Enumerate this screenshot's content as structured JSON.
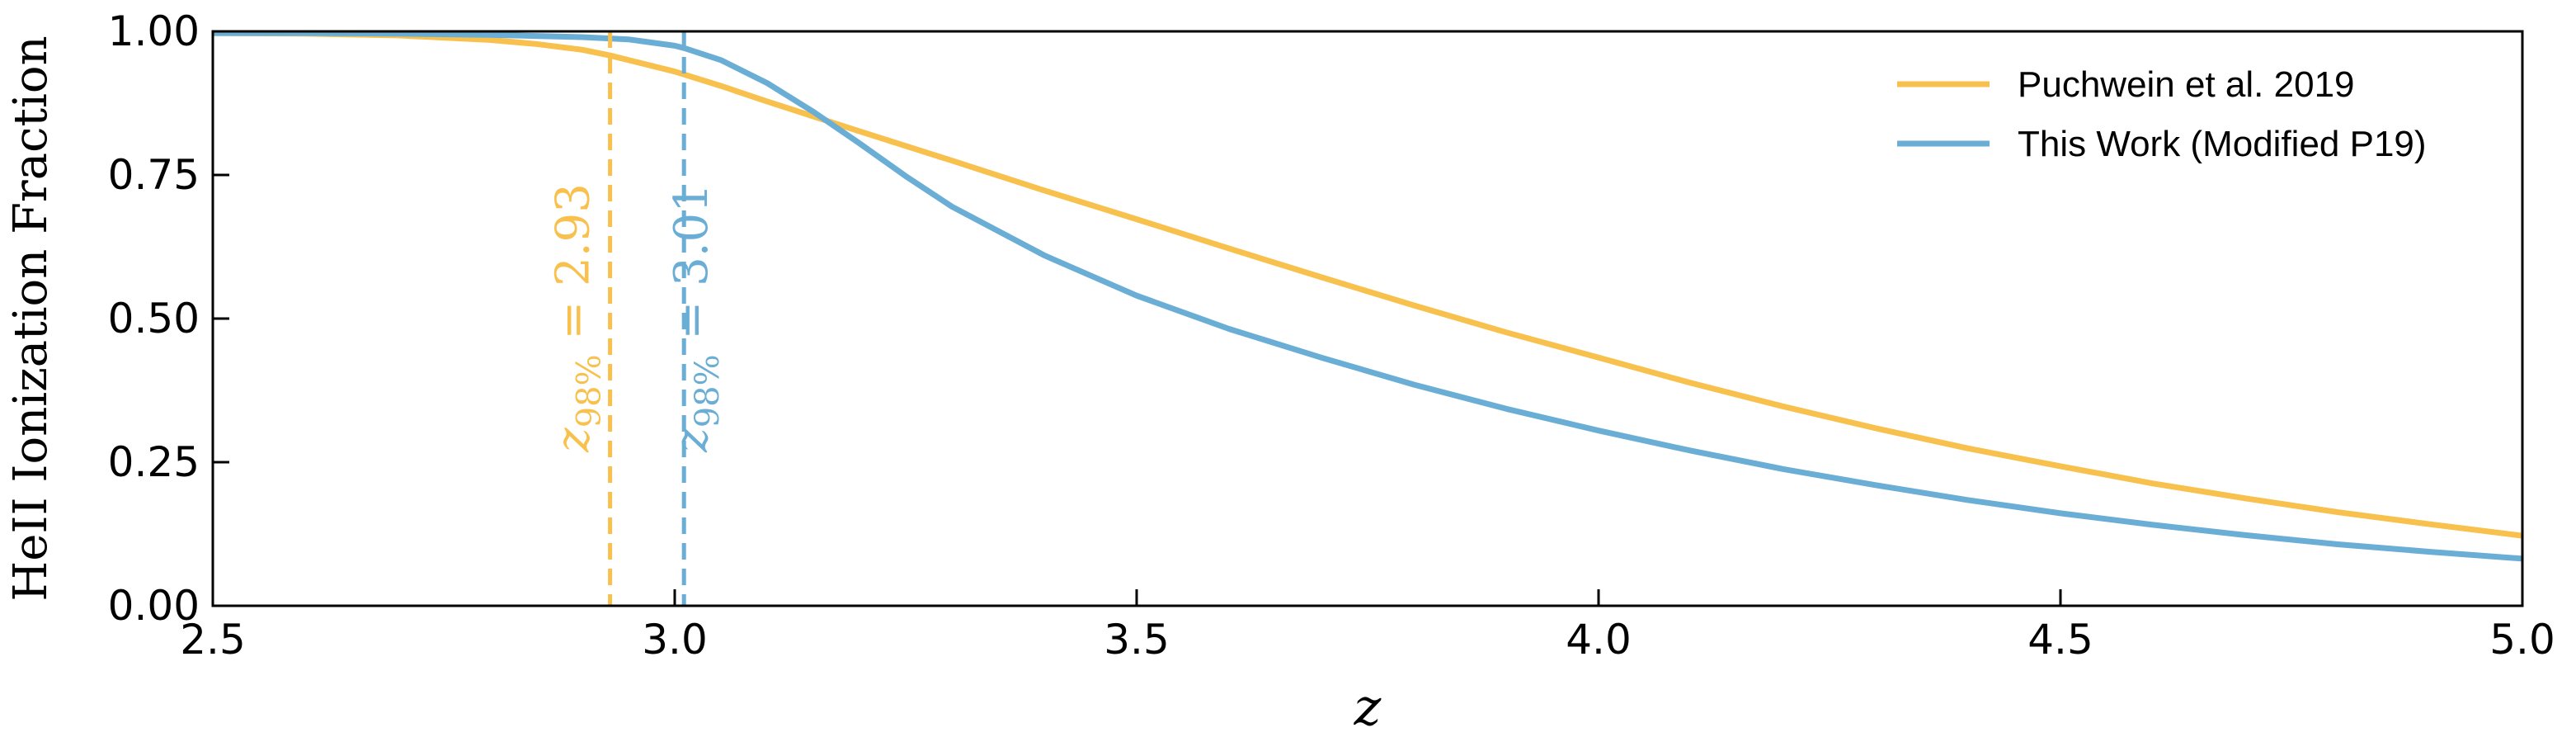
{
  "chart_data": {
    "type": "line",
    "xlabel": "z",
    "ylabel": "HeII Ionization Fraction",
    "xlim": [
      2.5,
      5.0
    ],
    "ylim": [
      0.0,
      1.0
    ],
    "xticks": [
      "2.5",
      "3.0",
      "3.5",
      "4.0",
      "4.5",
      "5.0"
    ],
    "yticks": [
      "0.00",
      "0.25",
      "0.50",
      "0.75",
      "1.00"
    ],
    "grid": false,
    "legend_position": "top-right",
    "series": [
      {
        "name": "Puchwein et al. 2019",
        "color": "#f8c04c",
        "x": [
          2.5,
          2.6,
          2.7,
          2.8,
          2.85,
          2.9,
          2.93,
          2.95,
          3.0,
          3.05,
          3.1,
          3.15,
          3.2,
          3.3,
          3.4,
          3.5,
          3.6,
          3.7,
          3.8,
          3.9,
          4.0,
          4.1,
          4.2,
          4.3,
          4.4,
          4.5,
          4.6,
          4.7,
          4.8,
          4.9,
          5.0
        ],
        "y": [
          0.997,
          0.996,
          0.993,
          0.985,
          0.978,
          0.968,
          0.958,
          0.95,
          0.93,
          0.905,
          0.878,
          0.852,
          0.826,
          0.775,
          0.723,
          0.673,
          0.622,
          0.572,
          0.523,
          0.476,
          0.432,
          0.388,
          0.347,
          0.309,
          0.274,
          0.243,
          0.213,
          0.187,
          0.163,
          0.142,
          0.122
        ]
      },
      {
        "name": "This Work (Modified P19)",
        "color": "#6aaed6",
        "x": [
          2.5,
          2.6,
          2.7,
          2.8,
          2.9,
          2.95,
          3.0,
          3.01,
          3.05,
          3.1,
          3.15,
          3.2,
          3.25,
          3.3,
          3.4,
          3.5,
          3.6,
          3.7,
          3.8,
          3.9,
          4.0,
          4.1,
          4.2,
          4.3,
          4.4,
          4.5,
          4.6,
          4.7,
          4.8,
          4.9,
          5.0
        ],
        "y": [
          0.997,
          0.997,
          0.996,
          0.994,
          0.99,
          0.986,
          0.975,
          0.971,
          0.95,
          0.91,
          0.86,
          0.805,
          0.748,
          0.695,
          0.61,
          0.54,
          0.482,
          0.432,
          0.385,
          0.343,
          0.305,
          0.27,
          0.238,
          0.21,
          0.184,
          0.161,
          0.141,
          0.123,
          0.107,
          0.094,
          0.082
        ]
      }
    ],
    "annotations": [
      {
        "x": 2.93,
        "prefix": "z",
        "subscript": "98%",
        "text": " = 2.93",
        "color": "#f8c04c"
      },
      {
        "x": 3.01,
        "prefix": "z",
        "subscript": "98%",
        "text": " = 3.01",
        "color": "#6aaed6"
      }
    ]
  }
}
